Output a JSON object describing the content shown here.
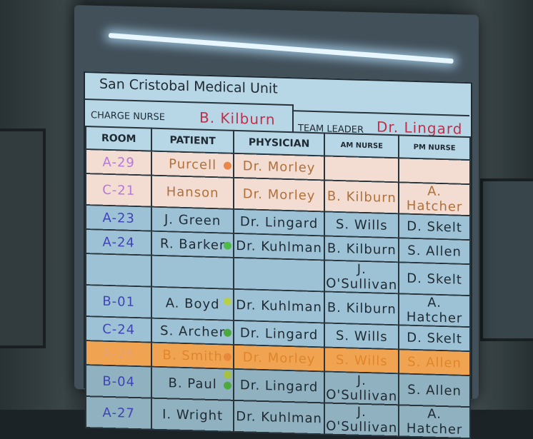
{
  "board": {
    "title": "San Cristobal Medical Unit",
    "charge_nurse_label": "CHARGE NURSE",
    "charge_nurse": "B. Kilburn",
    "team_leader_label": "TEAM LEADER",
    "team_leader": "Dr. Lingard",
    "columns": [
      "ROOM",
      "PATIENT",
      "PHYSICIAN",
      "AM NURSE",
      "PM NURSE"
    ],
    "rows": [
      {
        "room": "A-29",
        "patient": "Purcell",
        "physician": "Dr. Morley",
        "am": "",
        "pm": "",
        "style": "pink",
        "dots": [
          "#e8884a"
        ]
      },
      {
        "room": "C-21",
        "patient": "Hanson",
        "physician": "Dr. Morley",
        "am": "B. Kilburn",
        "pm": "A. Hatcher",
        "style": "pink",
        "dots": []
      },
      {
        "room": "A-23",
        "patient": "J. Green",
        "physician": "Dr. Lingard",
        "am": "S. Wills",
        "pm": "D. Skelt",
        "style": "blue",
        "dots": []
      },
      {
        "room": "A-24",
        "patient": "R. Barker",
        "physician": "Dr. Kuhlman",
        "am": "B. Kilburn",
        "pm": "S. Allen",
        "style": "blue",
        "dots": [
          "#4cbb48"
        ]
      },
      {
        "room": "",
        "patient": "",
        "physician": "",
        "am": "J. O'Sullivan",
        "pm": "D. Skelt",
        "style": "blue",
        "dots": []
      },
      {
        "room": "B-01",
        "patient": "A. Boyd",
        "physician": "Dr. Kuhlman",
        "am": "B. Kilburn",
        "pm": "A. Hatcher",
        "style": "blue",
        "dots": [
          "#b6cf48"
        ]
      },
      {
        "room": "C-24",
        "patient": "S. Archer",
        "physician": "Dr. Lingard",
        "am": "S. Wills",
        "pm": "D. Skelt",
        "style": "blue",
        "dots": [
          "#4caa3c"
        ]
      },
      {
        "room": "A-26",
        "patient": "B. Smith",
        "physician": "Dr. Morley",
        "am": "S. Wills",
        "pm": "S. Allen",
        "style": "orange",
        "dots": [
          "#e8883a"
        ]
      },
      {
        "room": "B-04",
        "patient": "B. Paul",
        "physician": "Dr. Lingard",
        "am": "J. O'Sullivan",
        "pm": "S. Allen",
        "style": "dark",
        "dots": [
          "#a6c040",
          "#4caa3c"
        ]
      },
      {
        "room": "A-27",
        "patient": "I. Wright",
        "physician": "Dr. Kuhlman",
        "am": "J. O'Sullivan",
        "pm": "A. Hatcher",
        "style": "dark",
        "dots": []
      }
    ]
  }
}
